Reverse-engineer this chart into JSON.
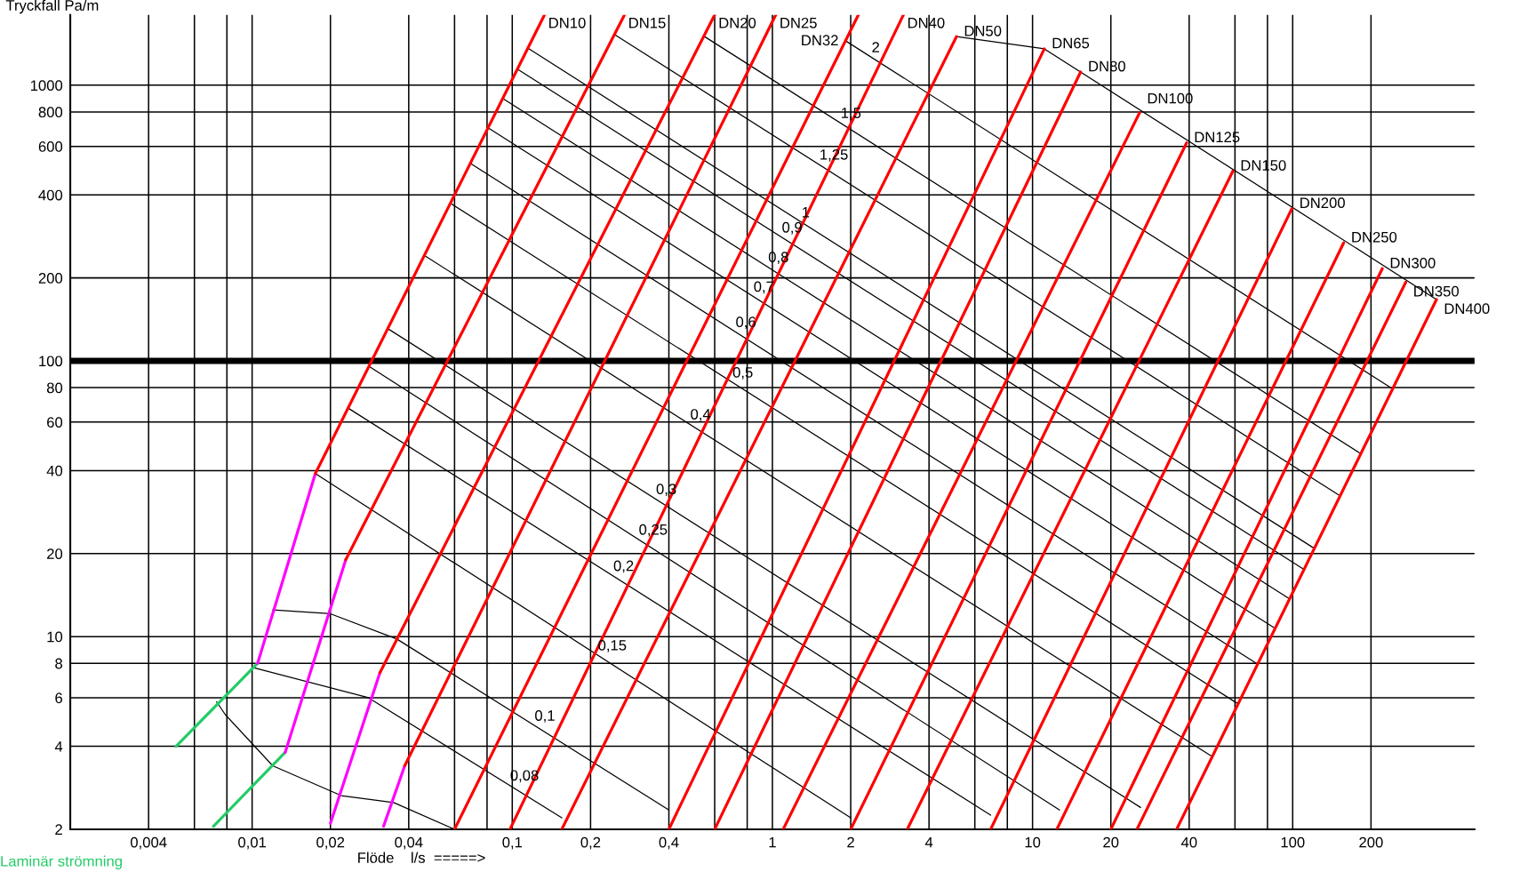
{
  "chart_data": {
    "type": "line",
    "xlabel": "Flöde    l/s  =====>",
    "ylabel": "Tryckfall Pa/m",
    "log": "xy",
    "grid": true,
    "legend": "bottom left",
    "xlim": [
      0.002,
      500
    ],
    "ylim": [
      2,
      1800
    ],
    "xticks": [
      {
        "value": 0.004,
        "label": "0,004"
      },
      {
        "value": 0.006,
        "label": null
      },
      {
        "value": 0.008,
        "label": null
      },
      {
        "value": 0.01,
        "label": "0,01"
      },
      {
        "value": 0.02,
        "label": "0,02"
      },
      {
        "value": 0.04,
        "label": "0,04"
      },
      {
        "value": 0.06,
        "label": null
      },
      {
        "value": 0.08,
        "label": null
      },
      {
        "value": 0.1,
        "label": "0,1"
      },
      {
        "value": 0.2,
        "label": "0,2"
      },
      {
        "value": 0.4,
        "label": "0,4"
      },
      {
        "value": 0.6,
        "label": null
      },
      {
        "value": 0.8,
        "label": null
      },
      1,
      2,
      4,
      {
        "value": 6,
        "label": null
      },
      {
        "value": 8,
        "label": null
      },
      10,
      20,
      40,
      {
        "value": 60,
        "label": null
      },
      {
        "value": 80,
        "label": null
      },
      100,
      200
    ],
    "yticks": [
      2,
      4,
      6,
      8,
      10,
      20,
      40,
      60,
      80,
      100,
      200,
      400,
      600,
      800,
      1000
    ],
    "ref_lines": [
      {
        "axis": "y",
        "value": 100,
        "color": "#000000"
      }
    ],
    "series": [
      {
        "name": "Laminär strömning",
        "color": "#22cc66",
        "x": [
          0.0051,
          0.0105,
          null,
          0.0071,
          0.0134
        ],
        "values": [
          4,
          8,
          null,
          2.05,
          3.8
        ]
      },
      {
        "color": "#ff00ff",
        "x": [
          0.0105,
          0.0175,
          null,
          0.0134,
          0.0229,
          null,
          0.02,
          0.031,
          null,
          0.032,
          0.0386
        ],
        "values": [
          8,
          39,
          null,
          3.8,
          19,
          null,
          2.1,
          7.4,
          null,
          2.05,
          3.4
        ]
      },
      {
        "name": "DN10",
        "color": "#ff0000",
        "x": [
          0.0175,
          0.133
        ],
        "values": [
          39,
          1800
        ]
      },
      {
        "name": "DN15",
        "color": "#ff0000",
        "x": [
          0.0229,
          0.27
        ],
        "values": [
          19,
          1800
        ]
      },
      {
        "name": "DN20",
        "color": "#ff0000",
        "x": [
          0.031,
          0.6
        ],
        "values": [
          7.4,
          1800
        ]
      },
      {
        "name": "DN25",
        "color": "#ff0000",
        "x": [
          0.0386,
          1.03
        ],
        "values": [
          3.4,
          1800
        ]
      },
      {
        "name": "DN32",
        "color": "#ff0000",
        "x": [
          0.06,
          2.14
        ],
        "values": [
          2,
          1800
        ]
      },
      {
        "name": "DN40",
        "color": "#ff0000",
        "x": [
          0.098,
          3.19
        ],
        "values": [
          2,
          1800
        ]
      },
      {
        "name": "DN50",
        "color": "#ff0000",
        "x": [
          0.155,
          5.1
        ],
        "values": [
          2,
          1500
        ]
      },
      {
        "name": "DN65",
        "color": "#ff0000",
        "x": [
          0.4,
          11.1
        ],
        "values": [
          2,
          1355
        ]
      },
      {
        "name": "DN80",
        "color": "#ff0000",
        "x": [
          0.6,
          15.3
        ],
        "values": [
          2,
          1117
        ]
      },
      {
        "name": "DN100",
        "color": "#ff0000",
        "x": [
          1.1,
          25.8
        ],
        "values": [
          2,
          795
        ]
      },
      {
        "name": "DN125",
        "color": "#ff0000",
        "x": [
          2.0,
          39.1
        ],
        "values": [
          2,
          618
        ]
      },
      {
        "name": "DN150",
        "color": "#ff0000",
        "x": [
          3.3,
          58.9
        ],
        "values": [
          2,
          488
        ]
      },
      {
        "name": "DN200",
        "color": "#ff0000",
        "x": [
          6.9,
          99.3
        ],
        "values": [
          2,
          357
        ]
      },
      {
        "name": "DN250",
        "color": "#ff0000",
        "x": [
          12.4,
          157
        ],
        "values": [
          2,
          268
        ]
      },
      {
        "name": "DN300",
        "color": "#ff0000",
        "x": [
          20,
          221
        ],
        "values": [
          2,
          216
        ]
      },
      {
        "name": "DN350",
        "color": "#ff0000",
        "x": [
          25.2,
          272
        ],
        "values": [
          2,
          193
        ]
      },
      {
        "name": "DN400",
        "color": "#ff0000",
        "x": [
          35.8,
          357
        ],
        "values": [
          2,
          167
        ]
      },
      {
        "color": "#000000",
        "x": [
          0.0073,
          0.0079,
          0.012,
          0.022,
          0.035,
          0.06
        ],
        "values": [
          5.8,
          5.2,
          3.4,
          2.65,
          2.5,
          2.0
        ]
      },
      {
        "color": "#000000",
        "x": [
          0.0102,
          0.028,
          0.155
        ],
        "values": [
          7.7,
          6.0,
          2.2
        ]
      },
      {
        "color": "#000000",
        "x": [
          0.012,
          0.02,
          0.036,
          0.4
        ],
        "values": [
          12.5,
          12.1,
          9.8,
          2.35
        ]
      },
      {
        "color": "#000000",
        "x": [
          0.0175,
          2.0
        ],
        "values": [
          39,
          2.2
        ]
      },
      {
        "color": "#000000",
        "x": [
          0.0234,
          6.9
        ],
        "values": [
          67.4,
          2.25
        ]
      },
      {
        "color": "#000000",
        "x": [
          0.0281,
          12.7
        ],
        "values": [
          95.7,
          2.35
        ]
      },
      {
        "color": "#000000",
        "x": [
          0.0332,
          26
        ],
        "values": [
          131,
          2.4
        ]
      },
      {
        "color": "#000000",
        "x": [
          0.046,
          49.1
        ],
        "values": [
          241,
          3.67
        ]
      },
      {
        "color": "#000000",
        "x": [
          0.0579,
          61.7
        ],
        "values": [
          373,
          5.7
        ]
      },
      {
        "color": "#000000",
        "x": [
          0.069,
          73.4
        ],
        "values": [
          521,
          7.94
        ]
      },
      {
        "color": "#000000",
        "x": [
          0.0807,
          85.7
        ],
        "values": [
          701,
          10.7
        ]
      },
      {
        "color": "#000000",
        "x": [
          0.0919,
          97.3
        ],
        "values": [
          895,
          13.7
        ]
      },
      {
        "color": "#000000",
        "x": [
          0.1047,
          110.7
        ],
        "values": [
          1143,
          17.5
        ]
      },
      {
        "color": "#000000",
        "x": [
          0.115,
          121
        ],
        "values": [
          1361,
          20.9
        ]
      },
      {
        "color": "#000000",
        "x": [
          0.247,
          152
        ],
        "values": [
          1528,
          32.4
        ]
      },
      {
        "color": "#000000",
        "x": [
          0.545,
          183
        ],
        "values": [
          1507,
          46
        ]
      },
      {
        "color": "#000000",
        "x": [
          1.91,
          243
        ],
        "values": [
          1449,
          79
        ]
      },
      {
        "color": "#000000",
        "x": [
          5.1,
          11.1,
          357
        ],
        "values": [
          1500,
          1355,
          167
        ]
      }
    ],
    "annotations": [
      {
        "text": "0,08",
        "x": 0.097,
        "y": 2.9
      },
      {
        "text": "0,1",
        "x": 0.1205,
        "y": 4.78
      },
      {
        "text": "0,15",
        "x": 0.211,
        "y": 8.6
      },
      {
        "text": "0,2",
        "x": 0.242,
        "y": 16.7
      },
      {
        "text": "0,25",
        "x": 0.303,
        "y": 22.6
      },
      {
        "text": "0,3",
        "x": 0.353,
        "y": 31.7
      },
      {
        "text": "0,4",
        "x": 0.478,
        "y": 59.2
      },
      {
        "text": "0,5",
        "x": 0.695,
        "y": 84
      },
      {
        "text": "0,6",
        "x": 0.714,
        "y": 128
      },
      {
        "text": "0,7",
        "x": 0.837,
        "y": 172
      },
      {
        "text": "0,8",
        "x": 0.953,
        "y": 220
      },
      {
        "text": "0,9",
        "x": 1.075,
        "y": 282
      },
      {
        "text": "1",
        "x": 1.28,
        "y": 320
      },
      {
        "text": "1,25",
        "x": 1.5,
        "y": 518
      },
      {
        "text": "1,5",
        "x": 1.81,
        "y": 733
      },
      {
        "text": "2",
        "x": 2.38,
        "y": 1270
      }
    ]
  }
}
